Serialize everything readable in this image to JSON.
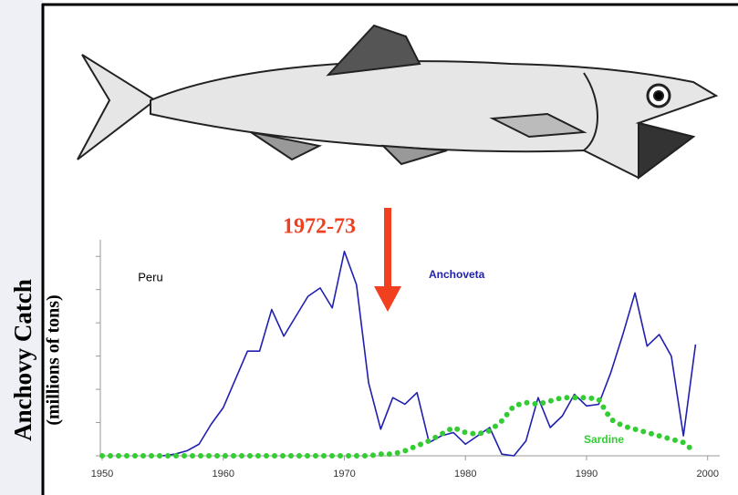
{
  "chart_data": {
    "type": "line",
    "ylabel": "Anchovy Catch",
    "ylabel_sub": "(millions of tons)",
    "annotations": [
      "Peru",
      "1972-73"
    ],
    "x": [
      1950,
      1951,
      1952,
      1953,
      1954,
      1955,
      1956,
      1957,
      1958,
      1959,
      1960,
      1961,
      1962,
      1963,
      1964,
      1965,
      1966,
      1967,
      1968,
      1969,
      1970,
      1971,
      1972,
      1973,
      1974,
      1975,
      1976,
      1977,
      1978,
      1979,
      1980,
      1981,
      1982,
      1983,
      1984,
      1985,
      1986,
      1987,
      1988,
      1989,
      1990,
      1991,
      1992,
      1993,
      1994,
      1995,
      1996,
      1997,
      1998,
      1999
    ],
    "series": [
      {
        "name": "Anchoveta",
        "color": "#1f1fb0",
        "values": [
          null,
          null,
          null,
          null,
          null,
          0,
          0.1,
          0.3,
          0.7,
          1.9,
          2.9,
          4.6,
          6.3,
          6.3,
          8.8,
          7.2,
          8.4,
          9.6,
          10.1,
          8.9,
          12.3,
          10.3,
          4.4,
          1.6,
          3.5,
          3.1,
          3.8,
          0.8,
          1.2,
          1.4,
          0.7,
          1.2,
          1.7,
          0.1,
          0,
          0.9,
          3.5,
          1.7,
          2.4,
          3.7,
          3.0,
          3.1,
          5.0,
          7.3,
          9.8,
          6.6,
          7.3,
          6.0,
          1.2,
          6.7
        ]
      },
      {
        "name": "Sardine",
        "color": "#33cc33",
        "values": [
          0,
          0,
          0,
          0,
          0,
          0,
          0,
          0,
          0,
          0,
          0,
          0,
          0,
          0,
          0,
          0,
          0,
          0,
          0,
          0,
          0,
          0,
          0,
          0.1,
          0.1,
          0.3,
          0.6,
          0.9,
          1.3,
          1.7,
          1.4,
          1.3,
          1.5,
          2.1,
          3.0,
          3.2,
          3.1,
          3.3,
          3.5,
          3.5,
          3.5,
          3.4,
          2.2,
          1.8,
          1.6,
          1.4,
          1.2,
          1.0,
          0.8,
          0.2
        ]
      }
    ],
    "xlim": [
      1950,
      2001
    ],
    "xticks": [
      1950,
      1960,
      1970,
      1980,
      1990,
      2000
    ],
    "ylim": [
      0,
      13
    ],
    "yticks": [
      0,
      2,
      4,
      6,
      8,
      10,
      12
    ]
  }
}
